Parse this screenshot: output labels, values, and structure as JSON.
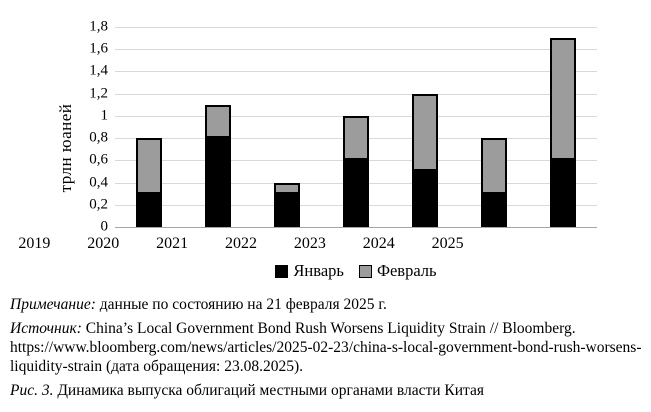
{
  "chart_data": {
    "type": "bar",
    "stacked": true,
    "title": "",
    "xlabel": "",
    "ylabel": "трлн юаней",
    "categories": [
      "2019",
      "2020",
      "2021",
      "2022",
      "2023",
      "2024",
      "2025"
    ],
    "series": [
      {
        "name": "Январь",
        "color": "#000000",
        "values": [
          0.3,
          0.8,
          0.3,
          0.6,
          0.5,
          0.3,
          0.6
        ]
      },
      {
        "name": "Февраль",
        "color": "#9c9c9c",
        "values": [
          0.5,
          0.3,
          0.1,
          0.4,
          0.7,
          0.5,
          1.1
        ]
      }
    ],
    "ylim": [
      0,
      1.8
    ],
    "ytick_step": 0.2,
    "ytick_labels": [
      "0",
      "0,2",
      "0,4",
      "0,6",
      "0,8",
      "1",
      "1,2",
      "1,4",
      "1,6",
      "1,8"
    ],
    "grid": true,
    "legend_position": "bottom",
    "colors": {
      "gridline": "#d9d9d9",
      "axis_line": "#a6a6a6",
      "january": "#000000",
      "february": "#9c9c9c"
    }
  },
  "notes": {
    "note_label": "Примечание:",
    "note_text": "данные по состоянию на 21 февраля 2025 г.",
    "source_label": "Источник:",
    "source_text": "China’s Local Government Bond Rush Worsens Liquidity Strain // Bloomberg. https://www.bloomberg.com/news/articles/2025-02-23/china-s-local-government-bond-rush-worsens-liquidity-strain (дата обращения: 23.08.2025).",
    "caption_label": "Рис. 3.",
    "caption_text": "Динамика выпуска облигаций местными органами власти Китая"
  }
}
